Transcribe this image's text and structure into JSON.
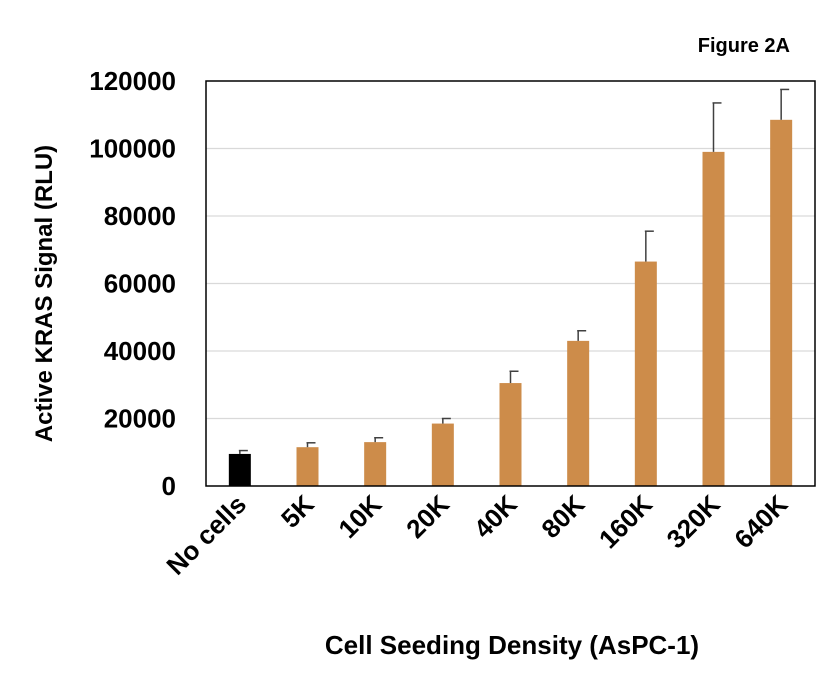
{
  "figure_label": "Figure 2A",
  "chart_data": {
    "type": "bar",
    "title": "",
    "xlabel": "Cell Seeding Density (AsPC-1)",
    "ylabel": "Active KRAS Signal (RLU)",
    "ylim": [
      0,
      120000
    ],
    "yticks": [
      0,
      20000,
      40000,
      60000,
      80000,
      100000,
      120000
    ],
    "grid": true,
    "legend": "none",
    "categories": [
      "No cells",
      "5K",
      "10K",
      "20K",
      "40K",
      "80K",
      "160K",
      "320K",
      "640K"
    ],
    "values": [
      9500,
      11500,
      13000,
      18500,
      30500,
      43000,
      66500,
      99000,
      108500
    ],
    "errors": [
      1000,
      1300,
      1300,
      1500,
      3500,
      3000,
      9000,
      14500,
      9000
    ],
    "colors": [
      "#000000",
      "#cd8c4a",
      "#cd8c4a",
      "#cd8c4a",
      "#cd8c4a",
      "#cd8c4a",
      "#cd8c4a",
      "#cd8c4a",
      "#cd8c4a"
    ]
  }
}
